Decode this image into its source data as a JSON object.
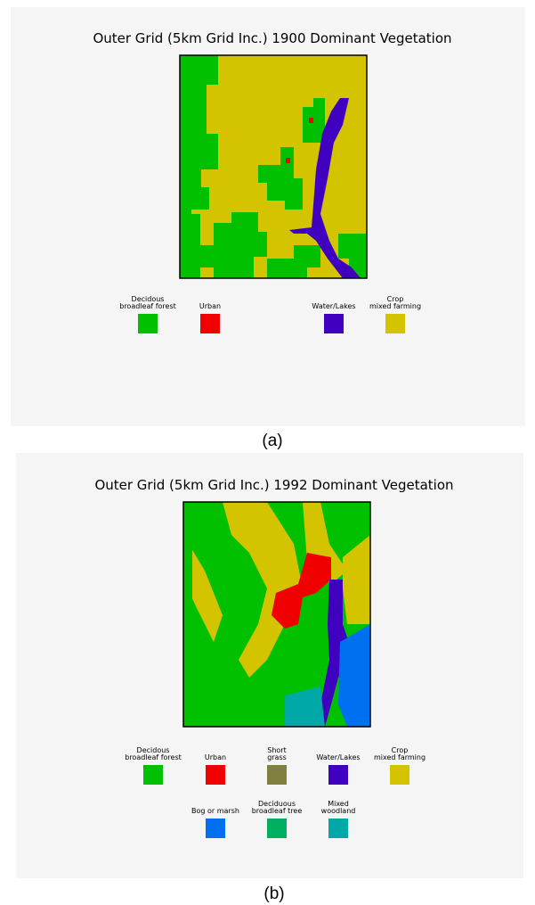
{
  "panels": [
    {
      "title": "Outer Grid (5km Grid Inc.) 1900 Dominant Vegetation",
      "legend": [
        {
          "label": [
            "Decidous",
            "broadleaf forest"
          ],
          "color": "#00c000"
        },
        {
          "label": [
            "Urban"
          ],
          "color": "#f00000"
        },
        {
          "label": [
            "Water/Lakes"
          ],
          "color": "#4000c0"
        },
        {
          "label": [
            "Crop",
            "mixed farming"
          ],
          "color": "#d4c400"
        }
      ],
      "caption": "(a)"
    },
    {
      "title": "Outer Grid (5km Grid Inc.) 1992 Dominant Vegetation",
      "legend": [
        {
          "label": [
            "Decidous",
            "broadleaf forest"
          ],
          "color": "#00c000"
        },
        {
          "label": [
            "Urban"
          ],
          "color": "#f00000"
        },
        {
          "label": [
            "Short",
            "grass"
          ],
          "color": "#808040"
        },
        {
          "label": [
            "Water/Lakes"
          ],
          "color": "#4000c0"
        },
        {
          "label": [
            "Crop",
            "mixed farming"
          ],
          "color": "#d4c400"
        },
        {
          "label": [
            "Bog or marsh"
          ],
          "color": "#0070f0"
        },
        {
          "label": [
            "Deciduous",
            "broadleaf tree"
          ],
          "color": "#00b060"
        },
        {
          "label": [
            "Mixed",
            "woodland"
          ],
          "color": "#00a8a8"
        }
      ],
      "caption": "(b)"
    }
  ]
}
